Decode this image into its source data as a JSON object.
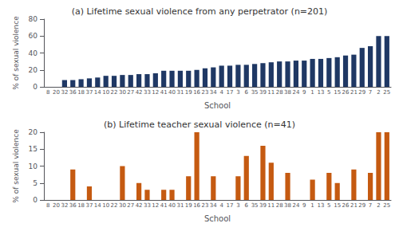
{
  "chart_data": [
    {
      "type": "bar",
      "title": "(a) Lifetime sexual violence from any perpetrator (n=201)",
      "xlabel": "School",
      "ylabel": "% of sexual violence",
      "categories": [
        "8",
        "20",
        "32",
        "36",
        "18",
        "37",
        "14",
        "10",
        "22",
        "30",
        "27",
        "42",
        "33",
        "12",
        "41",
        "40",
        "31",
        "19",
        "16",
        "23",
        "34",
        "4",
        "17",
        "3",
        "6",
        "35",
        "39",
        "11",
        "28",
        "38",
        "24",
        "9",
        "1",
        "13",
        "5",
        "15",
        "26",
        "21",
        "29",
        "7",
        "2",
        "25"
      ],
      "values": [
        0,
        0,
        8,
        8,
        9,
        10,
        11,
        13,
        13,
        14,
        14,
        15,
        15,
        16,
        19,
        19,
        19,
        19,
        20,
        22,
        23,
        25,
        25,
        26,
        26,
        27,
        28,
        29,
        30,
        30,
        31,
        31,
        33,
        33,
        34,
        35,
        37,
        38,
        46,
        48,
        60,
        60
      ],
      "color": "#1F3864",
      "ylim": [
        0,
        80
      ],
      "yticks": [
        0,
        20,
        40,
        60,
        80
      ],
      "grid": false
    },
    {
      "type": "bar",
      "title": "(b) Lifetime teacher sexual violence (n=41)",
      "xlabel": "School",
      "ylabel": "% of sexual violence",
      "categories": [
        "8",
        "20",
        "32",
        "36",
        "18",
        "37",
        "14",
        "10",
        "22",
        "30",
        "27",
        "42",
        "33",
        "12",
        "41",
        "40",
        "31",
        "19",
        "16",
        "23",
        "34",
        "4",
        "17",
        "3",
        "6",
        "35",
        "39",
        "11",
        "28",
        "38",
        "24",
        "9",
        "1",
        "13",
        "5",
        "15",
        "26",
        "21",
        "29",
        "7",
        "2",
        "25"
      ],
      "values": [
        0,
        0,
        0,
        9,
        0,
        4,
        0,
        0,
        0,
        10,
        0,
        5,
        3,
        0,
        3,
        3,
        0,
        7,
        20,
        0,
        7,
        0,
        0,
        7,
        13,
        0,
        16,
        11,
        0,
        8,
        0,
        0,
        6,
        0,
        8,
        5,
        0,
        9,
        0,
        8,
        20,
        20
      ],
      "color": "#C55A11",
      "ylim": [
        0,
        20
      ],
      "yticks": [
        0,
        5,
        10,
        15,
        20
      ],
      "grid": false
    }
  ]
}
